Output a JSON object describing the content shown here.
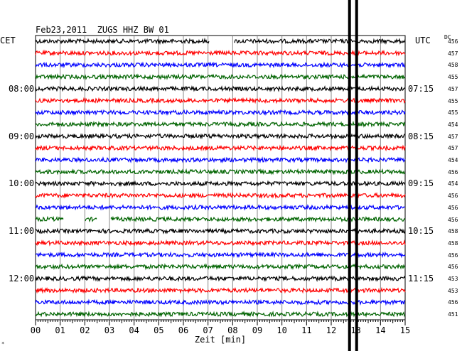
{
  "header": {
    "title": "Feb23,2011  ZUGS HHZ BW 01",
    "left_timezone": "CET",
    "right_timezone": "UTC",
    "dc_label": "DC"
  },
  "footer": {
    "xlabel": "Zeit [min]",
    "corner_mark": "*"
  },
  "colors": {
    "black": "#000000",
    "red": "#ff0000",
    "blue": "#0000ff",
    "green": "#006400",
    "grid": "#888888"
  },
  "chart_data": {
    "type": "line",
    "title": "Feb23,2011  ZUGS HHZ BW 01",
    "xlabel": "Zeit [min]",
    "xlim": [
      0,
      15
    ],
    "x_ticks": [
      "00",
      "01",
      "02",
      "03",
      "04",
      "05",
      "06",
      "07",
      "08",
      "09",
      "10",
      "11",
      "12",
      "13",
      "14",
      "15"
    ],
    "left_time_labels": [
      "08:00",
      "09:00",
      "10:00",
      "11:00",
      "12:00"
    ],
    "right_time_labels": [
      "07:15",
      "08:15",
      "09:15",
      "10:15",
      "11:15"
    ],
    "trace_colors": [
      "black",
      "red",
      "blue",
      "green",
      "black",
      "red",
      "blue",
      "green",
      "black",
      "red",
      "blue",
      "green",
      "black",
      "red",
      "blue",
      "green",
      "black",
      "red",
      "blue",
      "green",
      "black",
      "red",
      "blue",
      "green"
    ],
    "dc_values": [
      "456",
      "457",
      "458",
      "455",
      "457",
      "455",
      "455",
      "454",
      "457",
      "457",
      "454",
      "456",
      "454",
      "456",
      "456",
      "456",
      "458",
      "458",
      "456",
      "456",
      "453",
      "453",
      "456",
      "451"
    ],
    "gaps": [
      {
        "trace": 0,
        "from_min": 7.05,
        "to_min": 8.05
      },
      {
        "trace": 15,
        "from_min": 1.15,
        "to_min": 2.0
      },
      {
        "trace": 15,
        "from_min": 2.5,
        "to_min": 3.05
      }
    ],
    "event_marker_min": 12.8
  }
}
